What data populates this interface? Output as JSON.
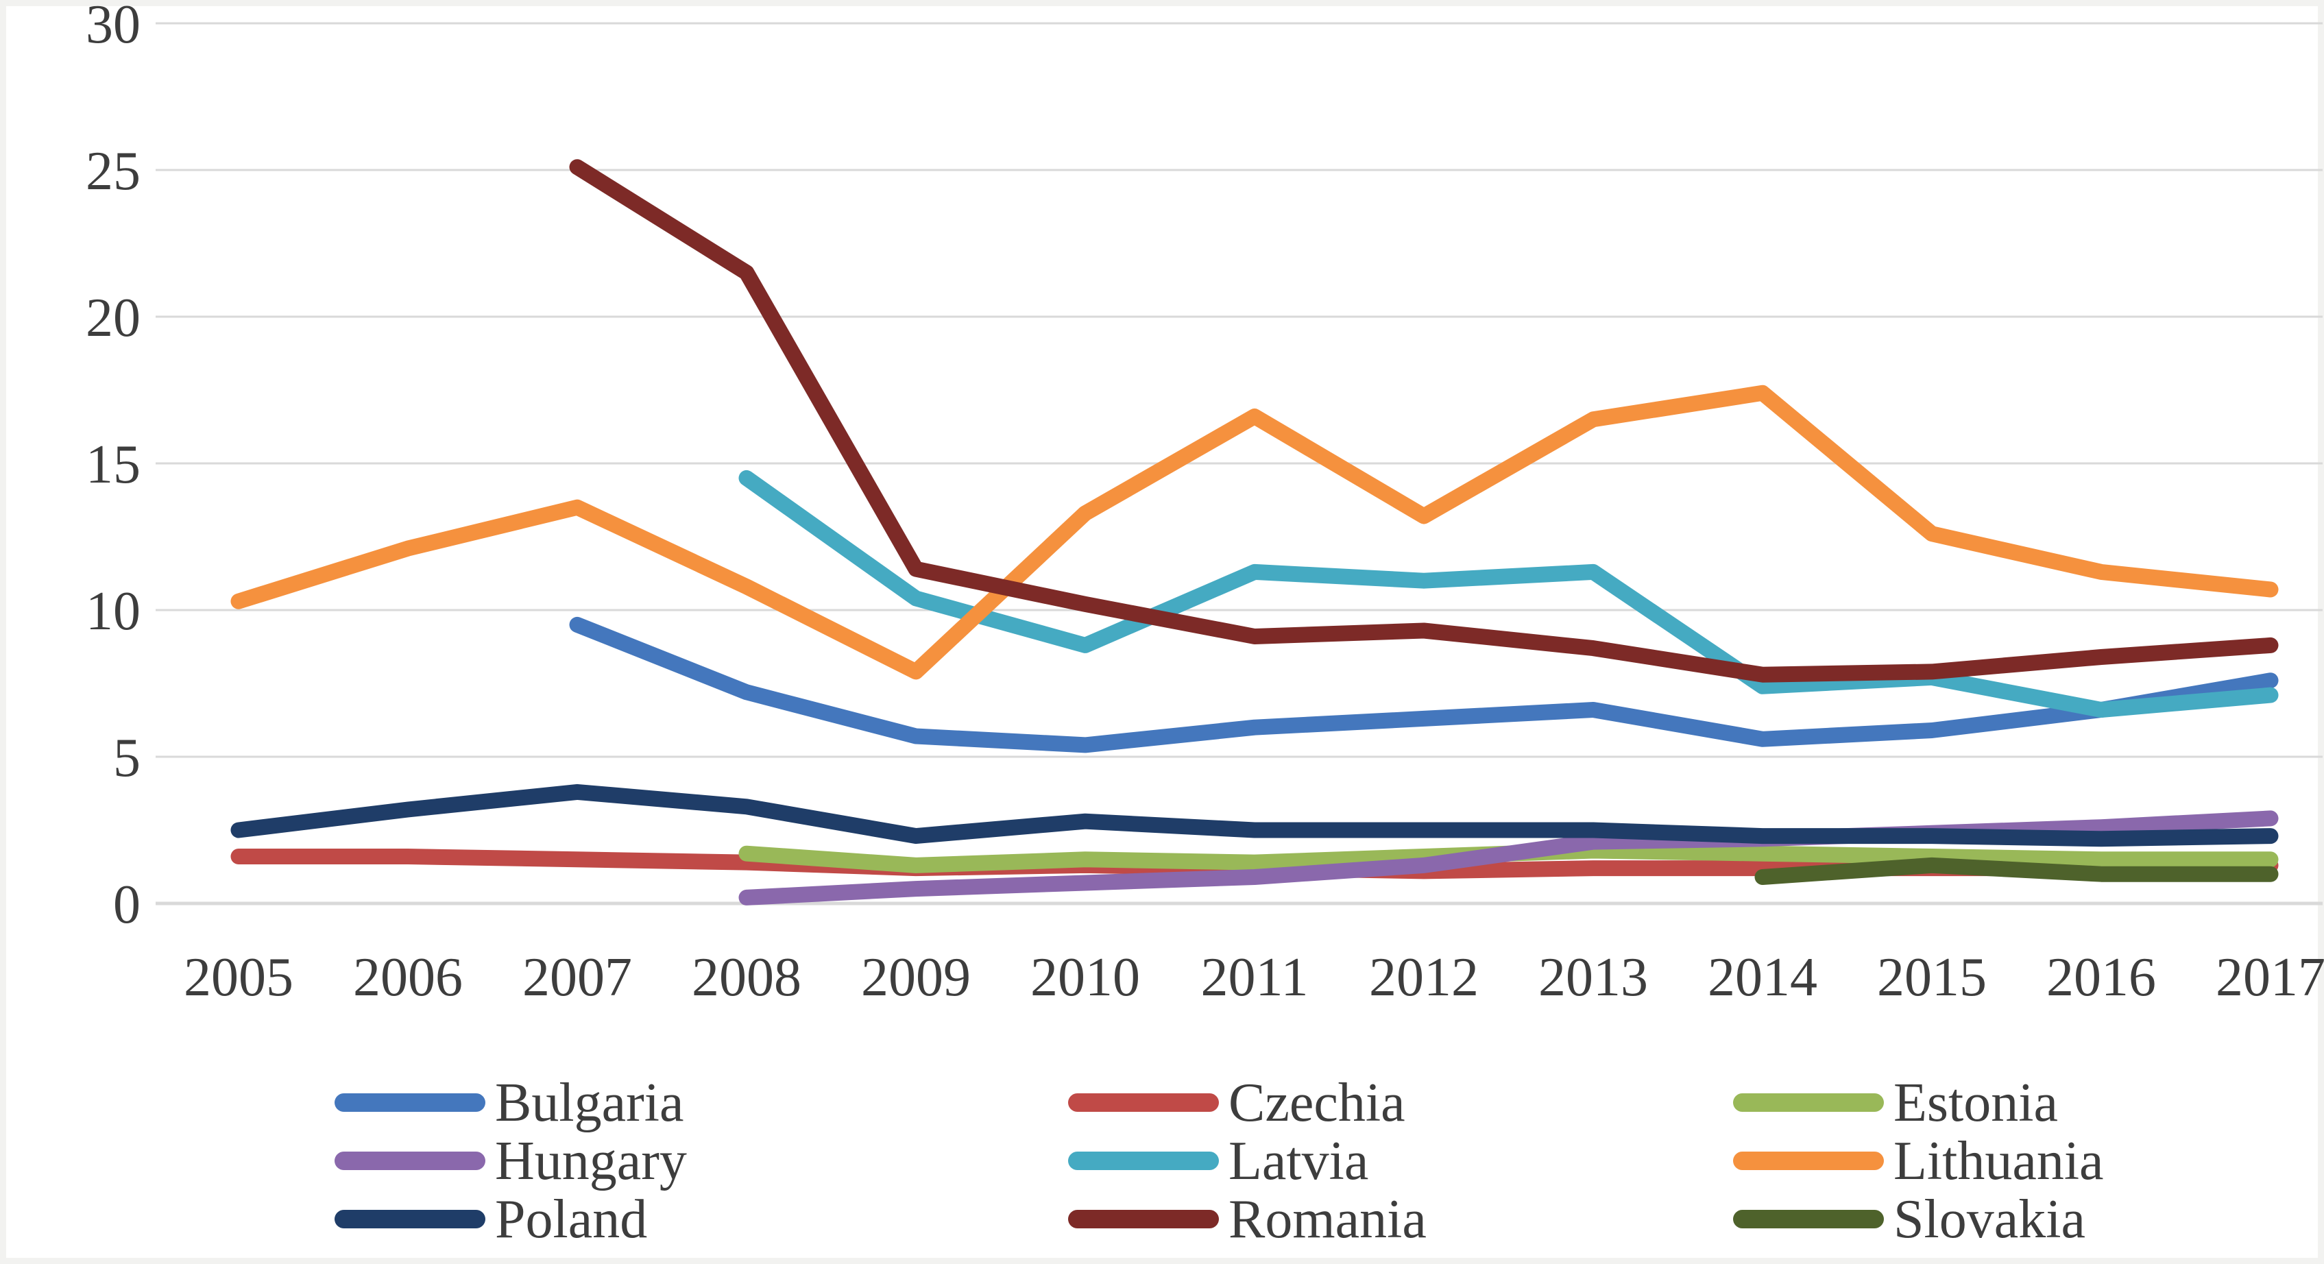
{
  "chart_data": {
    "type": "line",
    "title": "",
    "xlabel": "",
    "ylabel": "",
    "x": [
      2005,
      2006,
      2007,
      2008,
      2009,
      2010,
      2011,
      2012,
      2013,
      2014,
      2015,
      2016,
      2017
    ],
    "y_ticks": [
      0,
      5,
      10,
      15,
      20,
      25,
      30
    ],
    "ylim": [
      0,
      30
    ],
    "grid": "horizontal",
    "legend_position": "bottom",
    "legend_columns": 3,
    "axis_text_color": "#3d3d3d",
    "gridline_color": "#d9d9d9",
    "series": [
      {
        "name": "Bulgaria",
        "color": "#4477BD",
        "values": [
          null,
          null,
          9.5,
          7.2,
          5.7,
          5.4,
          6.0,
          6.3,
          6.6,
          5.6,
          5.9,
          6.6,
          7.6
        ]
      },
      {
        "name": "Czechia",
        "color": "#C04A47",
        "values": [
          1.6,
          1.6,
          1.5,
          1.4,
          1.2,
          1.3,
          1.2,
          1.1,
          1.2,
          1.2,
          1.2,
          1.2,
          1.3
        ]
      },
      {
        "name": "Estonia",
        "color": "#99B858",
        "values": [
          null,
          null,
          null,
          1.7,
          1.3,
          1.5,
          1.4,
          1.6,
          1.8,
          1.7,
          1.6,
          1.5,
          1.5
        ]
      },
      {
        "name": "Hungary",
        "color": "#8A68AC",
        "values": [
          null,
          null,
          null,
          0.2,
          0.5,
          0.7,
          0.9,
          1.3,
          2.1,
          2.2,
          2.4,
          2.6,
          2.9
        ]
      },
      {
        "name": "Latvia",
        "color": "#45AAC2",
        "values": [
          null,
          null,
          null,
          14.5,
          10.4,
          8.8,
          11.3,
          11.0,
          11.3,
          7.4,
          7.7,
          6.6,
          7.1
        ]
      },
      {
        "name": "Lithuania",
        "color": "#F5913E",
        "values": [
          10.3,
          12.1,
          13.5,
          10.8,
          7.9,
          13.3,
          16.6,
          13.2,
          16.5,
          17.4,
          12.6,
          11.3,
          10.7
        ]
      },
      {
        "name": "Poland",
        "color": "#1F3D68",
        "values": [
          2.5,
          3.2,
          3.8,
          3.3,
          2.3,
          2.8,
          2.5,
          2.5,
          2.5,
          2.3,
          2.3,
          2.2,
          2.3
        ]
      },
      {
        "name": "Romania",
        "color": "#7D2A27",
        "values": [
          null,
          null,
          25.1,
          21.5,
          11.4,
          10.2,
          9.1,
          9.3,
          8.7,
          7.8,
          7.9,
          8.4,
          8.8
        ]
      },
      {
        "name": "Slovakia",
        "color": "#4E622B",
        "values": [
          null,
          null,
          null,
          null,
          null,
          null,
          null,
          null,
          null,
          0.9,
          1.3,
          1.0,
          1.0
        ]
      }
    ]
  }
}
